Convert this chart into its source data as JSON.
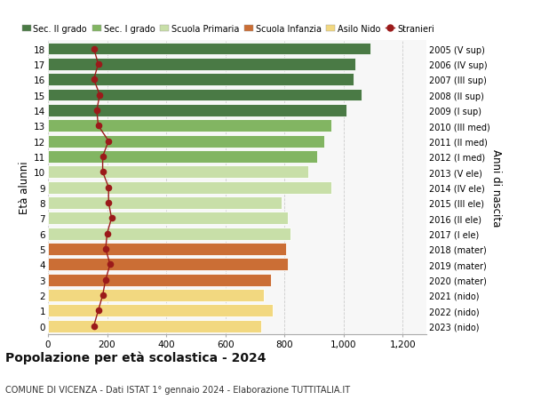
{
  "ages": [
    18,
    17,
    16,
    15,
    14,
    13,
    12,
    11,
    10,
    9,
    8,
    7,
    6,
    5,
    4,
    3,
    2,
    1,
    0
  ],
  "bar_values": [
    1090,
    1040,
    1035,
    1060,
    1010,
    960,
    935,
    910,
    880,
    960,
    790,
    810,
    820,
    805,
    810,
    755,
    730,
    760,
    720
  ],
  "stranieri_values": [
    155,
    170,
    155,
    175,
    165,
    170,
    205,
    185,
    185,
    205,
    205,
    215,
    200,
    195,
    210,
    195,
    185,
    170,
    155
  ],
  "right_labels": [
    "2005 (V sup)",
    "2006 (IV sup)",
    "2007 (III sup)",
    "2008 (II sup)",
    "2009 (I sup)",
    "2010 (III med)",
    "2011 (II med)",
    "2012 (I med)",
    "2013 (V ele)",
    "2014 (IV ele)",
    "2015 (III ele)",
    "2016 (II ele)",
    "2017 (I ele)",
    "2018 (mater)",
    "2019 (mater)",
    "2020 (mater)",
    "2021 (nido)",
    "2022 (nido)",
    "2023 (nido)"
  ],
  "bar_colors_by_age": {
    "18": "#4a7a45",
    "17": "#4a7a45",
    "16": "#4a7a45",
    "15": "#4a7a45",
    "14": "#4a7a45",
    "13": "#82b562",
    "12": "#82b562",
    "11": "#82b562",
    "10": "#c8dfa8",
    "9": "#c8dfa8",
    "8": "#c8dfa8",
    "7": "#c8dfa8",
    "6": "#c8dfa8",
    "5": "#cb6e35",
    "4": "#cb6e35",
    "3": "#cb6e35",
    "2": "#f2d880",
    "1": "#f2d880",
    "0": "#f2d880"
  },
  "stranieri_color": "#9b1a1a",
  "title": "Popolazione per età scolastica - 2024",
  "subtitle": "COMUNE DI VICENZA - Dati ISTAT 1° gennaio 2024 - Elaborazione TUTTITALIA.IT",
  "ylabel": "Età alunni",
  "right_ylabel": "Anni di nascita",
  "xlabel_ticks": [
    0,
    200,
    400,
    600,
    800,
    1000,
    1200
  ],
  "xlim": [
    0,
    1280
  ],
  "bg_color": "#f7f7f7",
  "legend_labels": [
    "Sec. II grado",
    "Sec. I grado",
    "Scuola Primaria",
    "Scuola Infanzia",
    "Asilo Nido",
    "Stranieri"
  ],
  "legend_colors": [
    "#4a7a45",
    "#82b562",
    "#c8dfa8",
    "#cb6e35",
    "#f2d880",
    "#9b1a1a"
  ]
}
